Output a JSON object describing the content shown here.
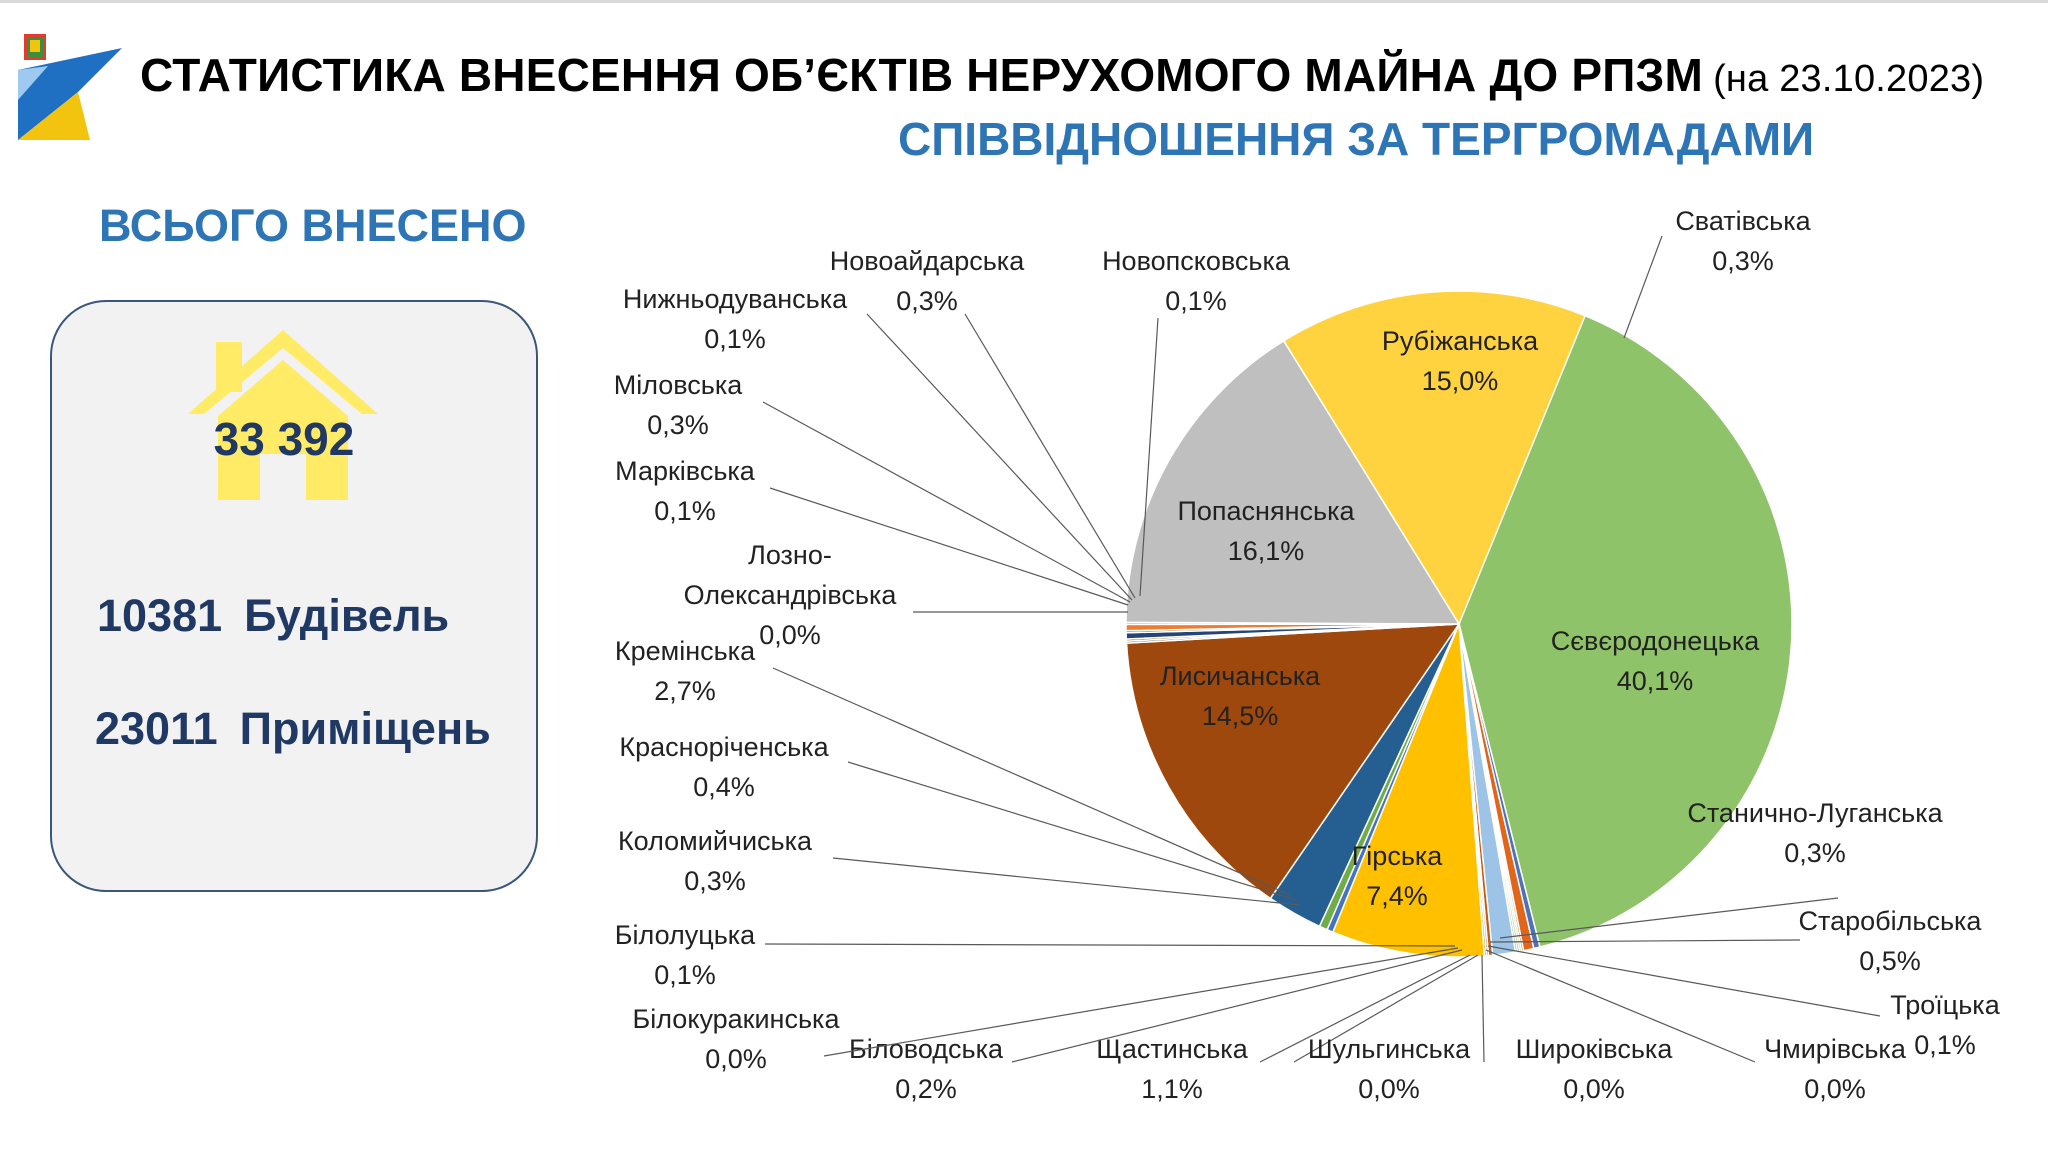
{
  "header": {
    "title": "СТАТИСТИКА ВНЕСЕННЯ ОБ’ЄКТІВ НЕРУХОМОГО МАЙНА ДО РПЗМ",
    "date": "(на 23.10.2023)",
    "subtitle": "СПІВВІДНОШЕННЯ ЗА ТЕРГРОМАДАМИ"
  },
  "summary": {
    "label": "ВСЬОГО ВНЕСЕНО",
    "total": "33 392",
    "buildings_count": "10381",
    "buildings_label": "Будівель",
    "rooms_count": "23011",
    "rooms_label": "Приміщень"
  },
  "colors": {
    "accent_blue": "#2e75b6",
    "dark_navy": "#1f3864",
    "house_yellow": "#ffeb66"
  },
  "chart_data": {
    "type": "pie",
    "slices": [
      {
        "name": "Сватівська",
        "value": 0.3,
        "label": "0,3%",
        "color": "#4472c4"
      },
      {
        "name": "Сєвєродонецька",
        "value": 40.1,
        "label": "40,1%",
        "color": "#8fc36a"
      },
      {
        "name": "Станично-Луганська",
        "value": 0.3,
        "label": "0,3%",
        "color": "#4f71b8"
      },
      {
        "name": "Старобільська",
        "value": 0.5,
        "label": "0,5%",
        "color": "#e0661b"
      },
      {
        "name": "Троїцька",
        "value": 0.1,
        "label": "0,1%",
        "color": "#8c8c8c"
      },
      {
        "name": "Чмирівська",
        "value": 0.0,
        "label": "0,0%",
        "color": "#ffc000"
      },
      {
        "name": "Широківська",
        "value": 0.0,
        "label": "0,0%",
        "color": "#5b9bd5"
      },
      {
        "name": "Шульгинська",
        "value": 0.0,
        "label": "0,0%",
        "color": "#70ad47"
      },
      {
        "name": "Щастинська",
        "value": 1.1,
        "label": "1,1%",
        "color": "#9dc3e6"
      },
      {
        "name": "Біловодська",
        "value": 0.2,
        "label": "0,2%",
        "color": "#c55a11"
      },
      {
        "name": "Білокуракинська",
        "value": 0.0,
        "label": "0,0%",
        "color": "#7f7f7f"
      },
      {
        "name": "Білолуцька",
        "value": 0.1,
        "label": "0,1%",
        "color": "#bf9000"
      },
      {
        "name": "Гірська",
        "value": 7.4,
        "label": "7,4%",
        "color": "#ffc000"
      },
      {
        "name": "Коломийчиська",
        "value": 0.3,
        "label": "0,3%",
        "color": "#4472c4"
      },
      {
        "name": "Красноріченська",
        "value": 0.4,
        "label": "0,4%",
        "color": "#70ad47"
      },
      {
        "name": "Кремінська",
        "value": 2.7,
        "label": "2,7%",
        "color": "#255e91"
      },
      {
        "name": "Лисичанська",
        "value": 14.5,
        "label": "14,5%",
        "color": "#9e480e"
      },
      {
        "name": "Лозно-Олександрівська",
        "value": 0.0,
        "label": "0,0%",
        "color": "#636363"
      },
      {
        "name": "Марківська",
        "value": 0.1,
        "label": "0,1%",
        "color": "#997300"
      },
      {
        "name": "Міловська",
        "value": 0.3,
        "label": "0,3%",
        "color": "#264478"
      },
      {
        "name": "Нижньодуванська",
        "value": 0.1,
        "label": "0,1%",
        "color": "#43682b"
      },
      {
        "name": "Новоайдарська",
        "value": 0.3,
        "label": "0,3%",
        "color": "#ed7d31"
      },
      {
        "name": "Новопсковська",
        "value": 0.1,
        "label": "0,1%",
        "color": "#a5a5a5"
      },
      {
        "name": "Попаснянська",
        "value": 16.1,
        "label": "16,1%",
        "color": "#bfbfbf"
      },
      {
        "name": "Рубіжанська",
        "value": 15.0,
        "label": "15,0%",
        "color": "#ffd23f"
      }
    ]
  }
}
